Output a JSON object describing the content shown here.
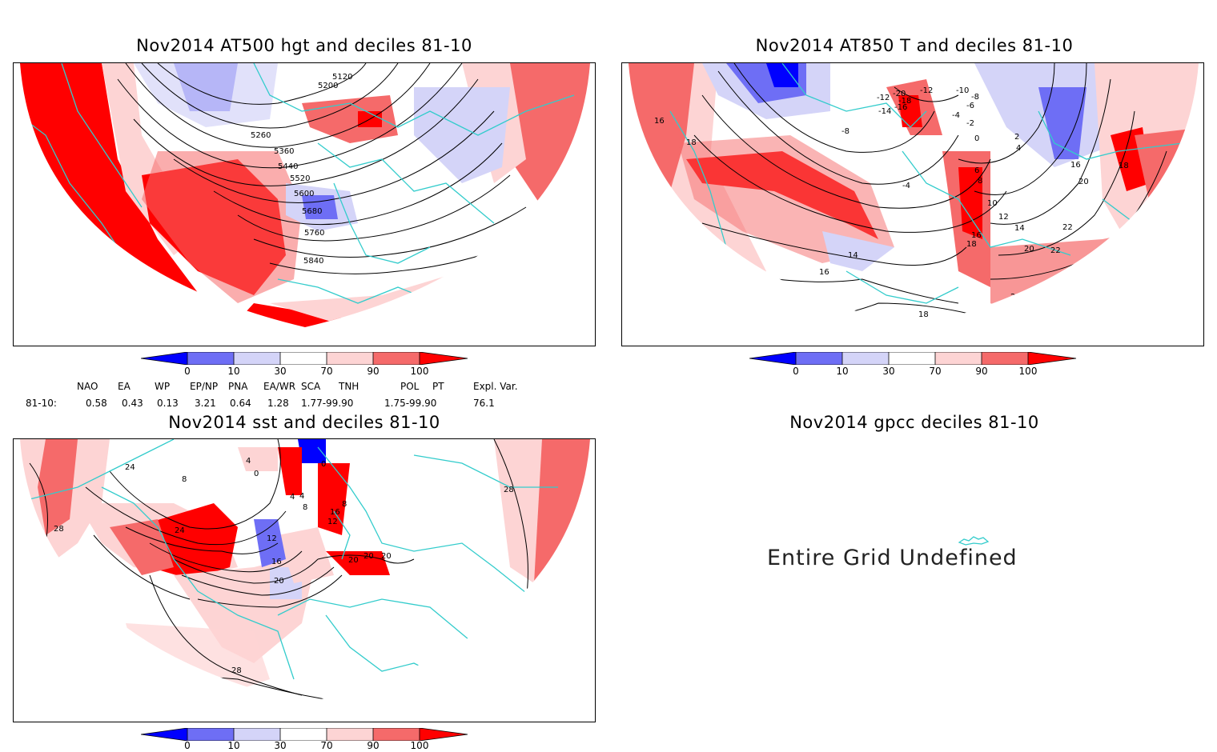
{
  "panels": {
    "hgt": {
      "title": "Nov2014 AT500 hgt and deciles 81-10",
      "contour_labels": [
        "5120",
        "5200",
        "5260",
        "5360",
        "5440",
        "5520",
        "5600",
        "5680",
        "5760",
        "5840"
      ]
    },
    "t850": {
      "title": "Nov2014 AT850 T and deciles 81-10",
      "contour_labels": [
        "-20",
        "-12",
        "-10",
        "-8",
        "-6",
        "-4",
        "-2",
        "0",
        "2",
        "4",
        "-14",
        "-16",
        "-18",
        "-12",
        "-8",
        "-4",
        "6",
        "8",
        "10",
        "12",
        "14",
        "16",
        "18",
        "20",
        "22",
        "16",
        "18",
        "20",
        "22",
        "18",
        "16",
        "14",
        "16",
        "18",
        "16",
        "18",
        "20",
        "20"
      ]
    },
    "sst": {
      "title": "Nov2014 sst and deciles 81-10",
      "contour_labels": [
        "24",
        "28",
        "8",
        "4",
        "0",
        "4",
        "4",
        "8",
        "12",
        "16",
        "20",
        "24",
        "28",
        "28",
        "28",
        "12",
        "0",
        "8",
        "16",
        "20",
        "20",
        "20",
        "28"
      ]
    },
    "gpcc": {
      "title": "Nov2014 gpcc deciles 81-10",
      "message": "Entire Grid Undefined"
    }
  },
  "colorbar": {
    "ticks": [
      "0",
      "10",
      "30",
      "70",
      "90",
      "100"
    ],
    "colors": [
      "#0000ff",
      "#6e6ef5",
      "#d4d4f8",
      "#ffffff",
      "#fdd4d4",
      "#f56a6a",
      "#ff0000"
    ]
  },
  "indices": {
    "headers": [
      "NAO",
      "EA",
      "WP",
      "EP/NP",
      "PNA",
      "EA/WR",
      "SCA",
      "TNH",
      "POL",
      "PT",
      "Expl. Var."
    ],
    "row_label": "81-10:",
    "values": [
      "0.58",
      "0.43",
      "0.13",
      "3.21",
      "0.64",
      "1.28",
      "1.77-99.90",
      "1.75-99.90",
      "76.1"
    ]
  }
}
